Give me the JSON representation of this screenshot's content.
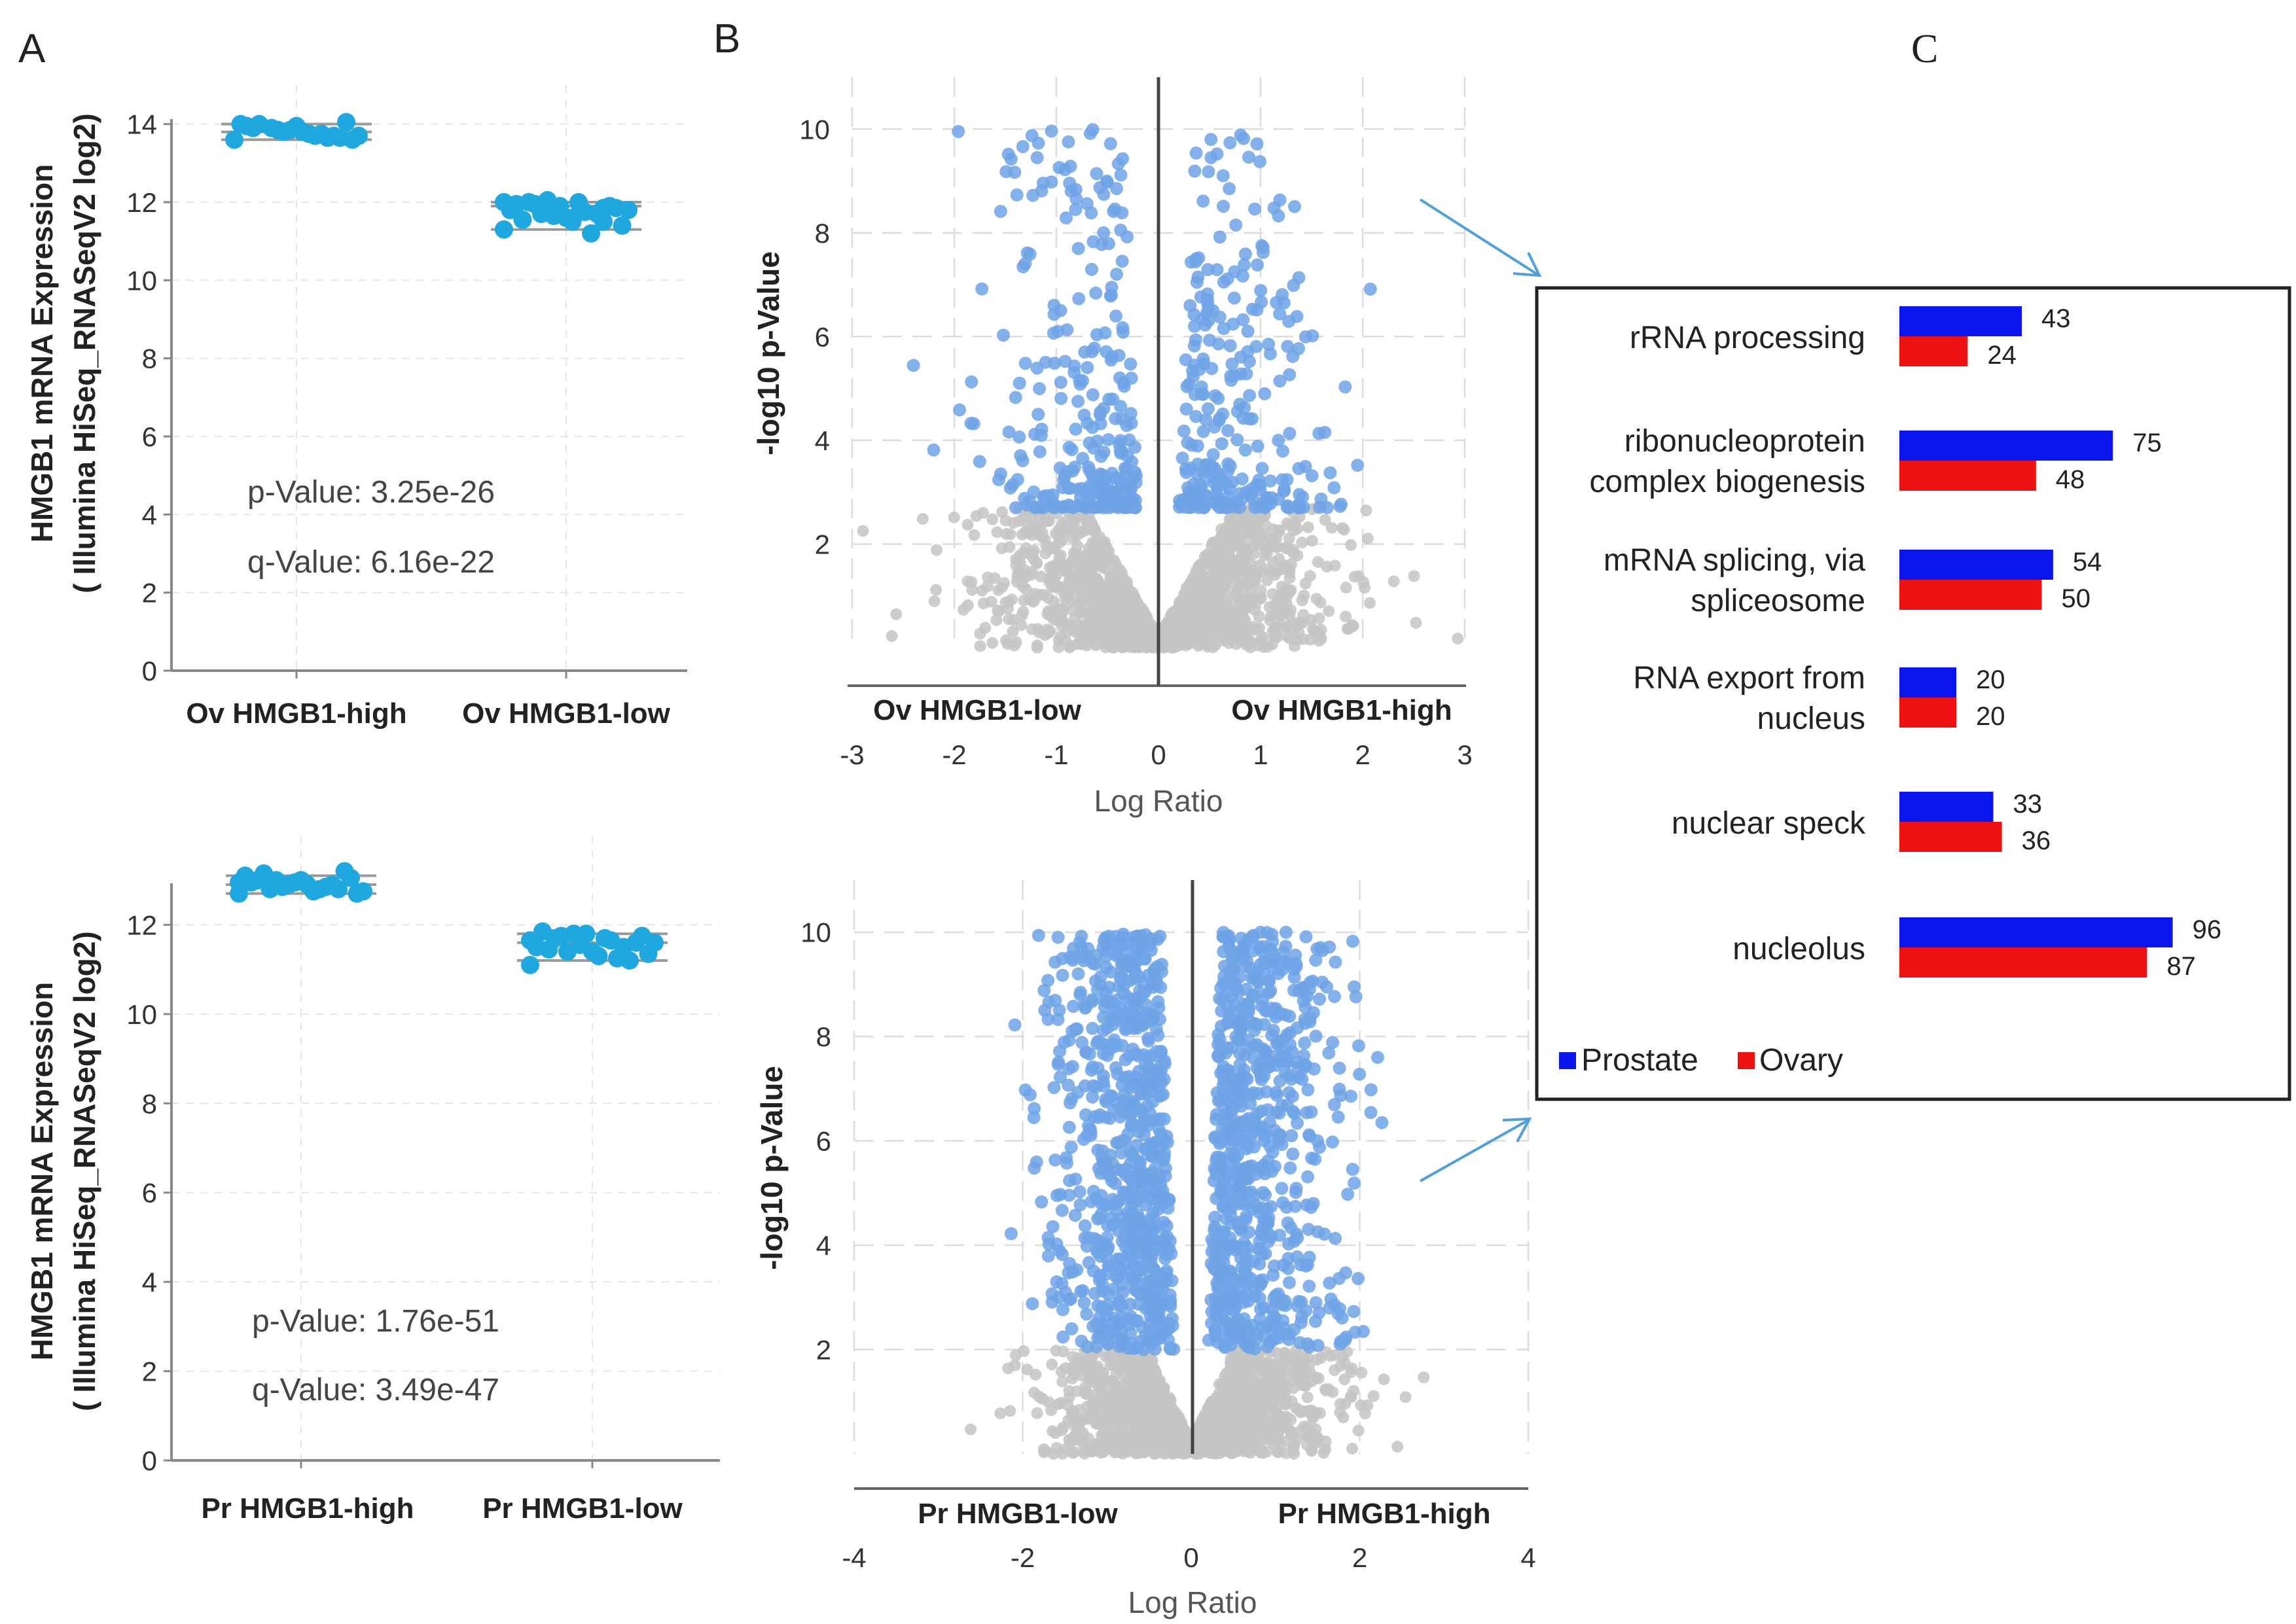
{
  "panels": {
    "a_label": "A",
    "b_label": "B",
    "c_label": "C"
  },
  "chart_data": [
    {
      "id": "A-top",
      "type": "scatter",
      "title": "",
      "ylabel_line1": "HMGB1 mRNA Expression",
      "ylabel_line2": "( Illumina HiSeq_RNASeqV2 log2)",
      "xlabel": "",
      "ylim": [
        0,
        15
      ],
      "yticks": [
        0,
        2,
        4,
        6,
        8,
        10,
        12,
        14
      ],
      "categories": [
        "Ov HMGB1-high",
        "Ov HMGB1-low"
      ],
      "groups": [
        {
          "name": "Ov HMGB1-high",
          "median": 13.8,
          "q1": 13.6,
          "q3": 14.0,
          "values": [
            13.6,
            13.7,
            13.8,
            13.9,
            14.0,
            13.65,
            13.75,
            13.85,
            13.95,
            14.05,
            13.7,
            13.8,
            13.9,
            13.6,
            13.75,
            13.85,
            14.0,
            13.7,
            13.65,
            13.95
          ]
        },
        {
          "name": "Ov HMGB1-low",
          "median": 11.9,
          "q1": 11.3,
          "q3": 12.0,
          "values": [
            11.3,
            11.5,
            11.6,
            11.7,
            11.8,
            11.9,
            12.0,
            12.05,
            11.95,
            11.85,
            11.75,
            11.65,
            11.55,
            11.4,
            11.2,
            11.9,
            12.0,
            11.8,
            11.7,
            11.6,
            11.95,
            12.0,
            11.85,
            11.5
          ]
        }
      ],
      "annotations": [
        "p-Value: 3.25e-26",
        "q-Value: 6.16e-22"
      ],
      "point_color": "#1fa8e0"
    },
    {
      "id": "A-bottom",
      "type": "scatter",
      "title": "",
      "ylabel_line1": "HMGB1 mRNA Expression",
      "ylabel_line2": "( Illumina HiSeq_RNASeqV2 log2)",
      "xlabel": "",
      "ylim": [
        0,
        14
      ],
      "yticks": [
        0,
        2,
        4,
        6,
        8,
        10,
        12
      ],
      "categories": [
        "Pr HMGB1-high",
        "Pr HMGB1-low"
      ],
      "groups": [
        {
          "name": "Pr HMGB1-high",
          "median": 12.9,
          "q1": 12.7,
          "q3": 13.1,
          "values": [
            12.7,
            12.8,
            12.9,
            13.0,
            13.1,
            13.2,
            12.75,
            12.85,
            12.95,
            13.05,
            12.8,
            12.9,
            13.0,
            12.7,
            12.85,
            12.95,
            13.15,
            12.75,
            12.9,
            13.0,
            12.8,
            12.95
          ]
        },
        {
          "name": "Pr HMGB1-low",
          "median": 11.6,
          "q1": 11.2,
          "q3": 11.8,
          "values": [
            11.1,
            11.2,
            11.3,
            11.4,
            11.5,
            11.6,
            11.7,
            11.8,
            11.85,
            11.75,
            11.65,
            11.55,
            11.45,
            11.35,
            11.25,
            11.8,
            11.7,
            11.6,
            11.5,
            11.4,
            11.75,
            11.65
          ]
        }
      ],
      "annotations": [
        "p-Value: 1.76e-51",
        "q-Value: 3.49e-47"
      ],
      "point_color": "#1fa8e0"
    },
    {
      "id": "B-top",
      "type": "scatter",
      "subtype": "volcano",
      "ylabel": "-log10 p-Value",
      "xlabel": "Log Ratio",
      "xlim": [
        -3,
        3
      ],
      "ylim": [
        0,
        11
      ],
      "xticks": [
        -3,
        -2,
        -1,
        0,
        1,
        2,
        3
      ],
      "yticks": [
        2,
        4,
        6,
        8,
        10
      ],
      "left_group": "Ov HMGB1-low",
      "right_group": "Ov HMGB1-high",
      "significance_threshold": 2.7,
      "significant_color": "#6fa3e6",
      "nonsignificant_color": "#c4c4c4"
    },
    {
      "id": "B-bottom",
      "type": "scatter",
      "subtype": "volcano",
      "ylabel": "-log10 p-Value",
      "xlabel": "Log Ratio",
      "xlim": [
        -4,
        4
      ],
      "ylim": [
        0,
        11
      ],
      "xticks": [
        -4,
        -2,
        0,
        2,
        4
      ],
      "yticks": [
        2,
        4,
        6,
        8,
        10
      ],
      "left_group": "Pr HMGB1-low",
      "right_group": "Pr HMGB1-high",
      "significance_threshold": 2.0,
      "significant_color": "#6fa3e6",
      "nonsignificant_color": "#c4c4c4"
    },
    {
      "id": "C",
      "type": "bar",
      "orientation": "horizontal",
      "categories": [
        {
          "line1": "rRNA processing",
          "line2": ""
        },
        {
          "line1": "ribonucleoprotein",
          "line2": "complex biogenesis"
        },
        {
          "line1": "mRNA splicing, via",
          "line2": "spliceosome"
        },
        {
          "line1": "RNA export from",
          "line2": "nucleus"
        },
        {
          "line1": "nuclear speck",
          "line2": ""
        },
        {
          "line1": "nucleolus",
          "line2": ""
        }
      ],
      "series": [
        {
          "name": "Prostate",
          "color": "#0a14ee",
          "values": [
            43,
            75,
            54,
            20,
            33,
            96
          ]
        },
        {
          "name": "Ovary",
          "color": "#ee1111",
          "values": [
            24,
            48,
            50,
            20,
            36,
            87
          ]
        }
      ],
      "xlim": [
        0,
        100
      ],
      "legend": "bottom-left"
    }
  ]
}
